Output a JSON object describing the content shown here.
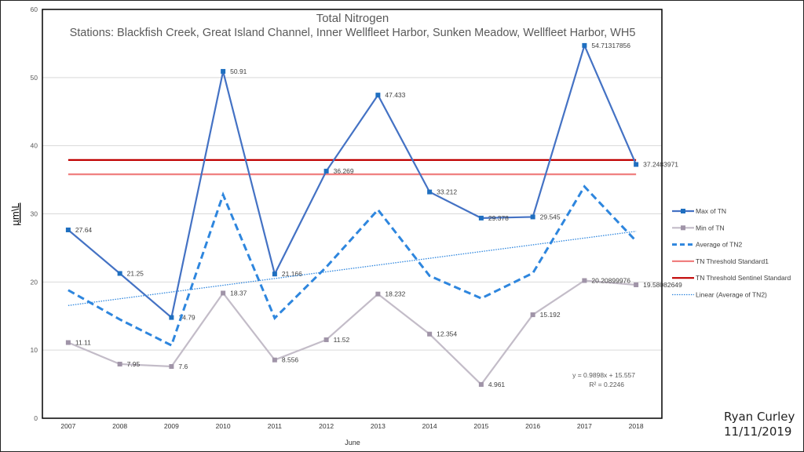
{
  "chart_data": {
    "type": "line",
    "title": "Total Nitrogen",
    "subtitle": "Stations: Blackfish Creek, Great Island Channel, Inner Wellfleet Harbor, Sunken Meadow, Wellfleet Harbor, WH5",
    "xlabel": "June",
    "ylabel": "µm\\L",
    "ylim": [
      0,
      60
    ],
    "yticks": [
      "0",
      "10",
      "20",
      "30",
      "40",
      "50",
      "60"
    ],
    "grid": true,
    "legend_position": "right",
    "categories": [
      "2007",
      "2008",
      "2009",
      "2010",
      "2011",
      "2012",
      "2013",
      "2014",
      "2015",
      "2016",
      "2017",
      "2018"
    ],
    "series": [
      {
        "name": "Max of TN",
        "color": "#4472c4",
        "marker_color": "#1f6fc0",
        "values": [
          27.64,
          21.25,
          14.79,
          50.91,
          21.166,
          36.269,
          47.433,
          33.212,
          29.378,
          29.545,
          54.71317856,
          37.2483971
        ],
        "labels": [
          "27.64",
          "21.25",
          "14.79",
          "50.91",
          "21.166",
          "36.269",
          "47.433",
          "33.212",
          "29.378",
          "29.545",
          "54.71317856",
          "37.2483971"
        ]
      },
      {
        "name": "Min of TN",
        "color": "#c3bcc8",
        "marker_color": "#a094a8",
        "values": [
          11.11,
          7.95,
          7.6,
          18.37,
          8.556,
          11.52,
          18.232,
          12.354,
          4.961,
          15.192,
          20.20899976,
          19.58082649
        ],
        "labels": [
          "11.11",
          "7.95",
          "7.6",
          "18.37",
          "8.556",
          "11.52",
          "18.232",
          "12.354",
          "4.961",
          "15.192",
          "20.20899976",
          "19.58082649"
        ]
      },
      {
        "name": "Average of TN2",
        "color": "#2e86de",
        "dash": "dashed",
        "values": [
          18.8,
          14.5,
          10.7,
          32.8,
          14.7,
          22.2,
          30.6,
          20.9,
          17.6,
          21.3,
          34.0,
          26.0
        ]
      },
      {
        "name": "TN Threshold Standard1",
        "color": "#f08080",
        "values": [
          35.8,
          35.8,
          35.8,
          35.8,
          35.8,
          35.8,
          35.8,
          35.8,
          35.8,
          35.8,
          35.8,
          35.8
        ]
      },
      {
        "name": "TN Threshold Sentinel Standard",
        "color": "#c00000",
        "values": [
          37.9,
          37.9,
          37.9,
          37.9,
          37.9,
          37.9,
          37.9,
          37.9,
          37.9,
          37.9,
          37.9,
          37.9
        ]
      },
      {
        "name": "Linear (Average of TN2)",
        "color": "#2e86de",
        "dash": "dotted",
        "trend": {
          "slope": 0.9898,
          "intercept": 15.557
        }
      }
    ],
    "annotations": {
      "equation": "y = 0.9898x + 15.557",
      "r2": "R² = 0.2246"
    }
  },
  "author": {
    "name": "Ryan Curley",
    "date": "11/11/2019"
  }
}
